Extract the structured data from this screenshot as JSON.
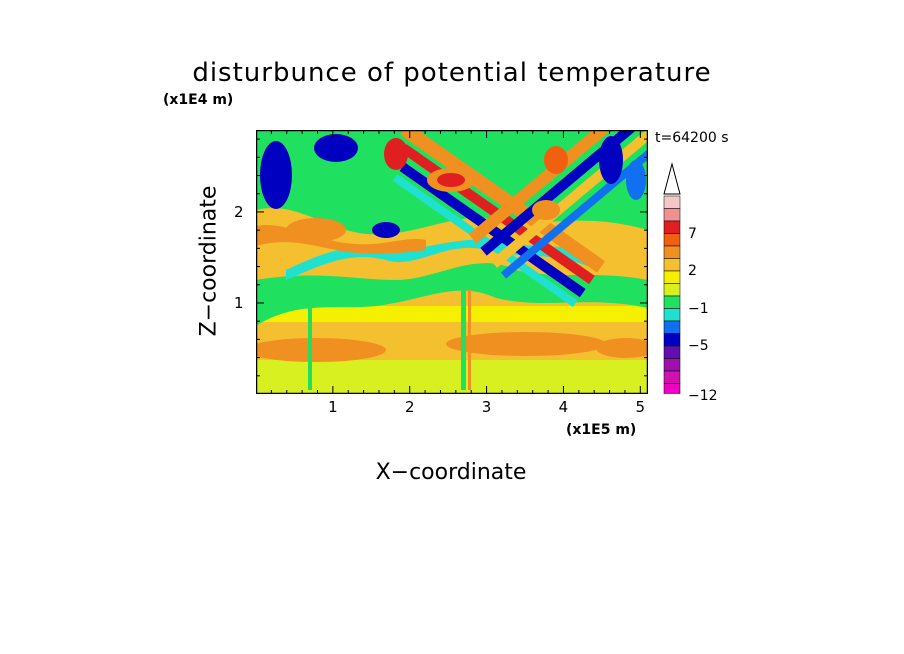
{
  "chart_data": {
    "type": "heatmap",
    "title": "disturbunce of potential temperature",
    "xlabel": "X−coordinate",
    "ylabel": "Z−coordinate",
    "x_unit": "(x1E5 m)",
    "y_unit": "(x1E4 m)",
    "annotation": "t=64200 s",
    "xlim": [
      0,
      5.1
    ],
    "ylim": [
      0,
      2.9
    ],
    "x_ticks": [
      "1",
      "2",
      "3",
      "4",
      "5"
    ],
    "y_ticks": [
      "1",
      "2"
    ],
    "colorbar": {
      "labels": [
        "7",
        "2",
        "−1",
        "−5",
        "−12"
      ],
      "levels_top_to_bottom": [
        ">13",
        "9 to 13",
        "7 to 9",
        "5 to 7",
        "3 to 5",
        "2 to 3",
        "1 to 2",
        "0 to 1",
        "−1 to 0",
        "−2 to −1",
        "−3 to −2",
        "−5 to −3",
        "−7 to −5",
        "−9 to −7",
        "−12 to −9",
        "<−12"
      ],
      "colors_top_to_bottom": [
        "#f5c8c8",
        "#f09090",
        "#e02020",
        "#f06010",
        "#f09020",
        "#f5c030",
        "#f5f000",
        "#d8f020",
        "#20e060",
        "#20e0d0",
        "#1070f0",
        "#0000c0",
        "#6010b0",
        "#a010b0",
        "#d010b0",
        "#f000c0"
      ],
      "extend_max": true
    },
    "field_description_color_mapping": {
      "background_lower": "#f5c030",
      "mid_band": "#20e060",
      "warm_wave": "#e02020",
      "cold_wave": "#0000c0"
    }
  }
}
